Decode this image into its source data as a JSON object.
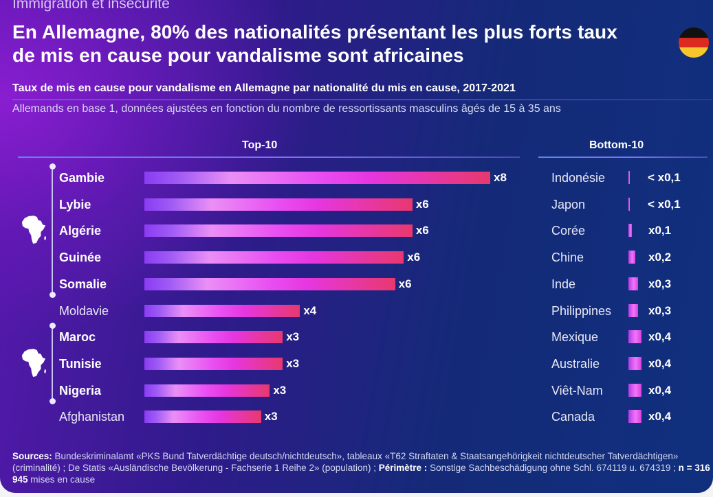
{
  "header": {
    "kicker": "Immigration et insécurité",
    "title_line1": "En Allemagne, 80% des nationalités présentant les plus forts taux",
    "title_line2": "de mis en cause pour vandalisme sont africaines",
    "subtitle": "Taux de mis en cause pour vandalisme en Allemagne par nationalité du mis en cause, 2017-2021",
    "note": "Allemands en base 1, données ajustées en fonction du nombre de ressortissants masculins âgés de 15 à 35 ans",
    "flag_colors": [
      "#111111",
      "#dd2a1e",
      "#f6c72c"
    ]
  },
  "colors": {
    "bar_start": "#8a3cf2",
    "bar_mid": "#e94ef2",
    "bar_end": "#e8386e"
  },
  "chart_data": [
    {
      "type": "bar",
      "orientation": "horizontal",
      "title": "Top-10",
      "categories": [
        "Gambie",
        "Lybie",
        "Algérie",
        "Guinée",
        "Somalie",
        "Moldavie",
        "Maroc",
        "Tunisie",
        "Nigeria",
        "Afghanistan"
      ],
      "values": [
        8.0,
        6.2,
        6.2,
        6.0,
        5.8,
        3.6,
        3.2,
        3.2,
        2.9,
        2.7
      ],
      "labels": [
        "x8",
        "x6",
        "x6",
        "x6",
        "x6",
        "x4",
        "x3",
        "x3",
        "x3",
        "x3"
      ],
      "african": [
        true,
        true,
        true,
        true,
        true,
        false,
        true,
        true,
        true,
        false
      ],
      "groups": [
        {
          "name": "africa",
          "members": [
            "Gambie",
            "Lybie",
            "Algérie",
            "Guinée",
            "Somalie"
          ]
        },
        {
          "name": "africa",
          "members": [
            "Maroc",
            "Tunisie",
            "Nigeria"
          ]
        }
      ],
      "xlim": [
        0,
        8.3
      ],
      "baseline": "Allemands = 1"
    },
    {
      "type": "bar",
      "orientation": "horizontal",
      "title": "Bottom-10",
      "categories": [
        "Indonésie",
        "Japon",
        "Corée",
        "Chine",
        "Inde",
        "Philippines",
        "Mexique",
        "Australie",
        "Viêt-Nam",
        "Canada"
      ],
      "values": [
        0.05,
        0.05,
        0.1,
        0.2,
        0.3,
        0.3,
        0.4,
        0.4,
        0.4,
        0.4
      ],
      "labels": [
        "< x0,1",
        "< x0,1",
        "x0,1",
        "x0,2",
        "x0,3",
        "x0,3",
        "x0,4",
        "x0,4",
        "x0,4",
        "x0,4"
      ],
      "xlim": [
        0,
        0.4
      ]
    }
  ],
  "footer": {
    "sources_label": "Sources:",
    "sources_text": " Bundeskriminalamt «PKS Bund Tatverdächtige deutsch/nichtdeutsch», tableaux «T62 Straftaten & Staatsangehörigkeit nichtdeutscher Tatverdächtigen» (criminalité) ; De Statis «Ausländische Bevölkerung - Fachserie 1 Reihe 2» (population) ; ",
    "perimetre_label": "Périmètre :",
    "perimetre_text": " Sonstige Sachbeschädigung ohne Schl. 674119 u. 674319 ; ",
    "n_label": "n = 316 945",
    "n_text": " mises en cause"
  }
}
